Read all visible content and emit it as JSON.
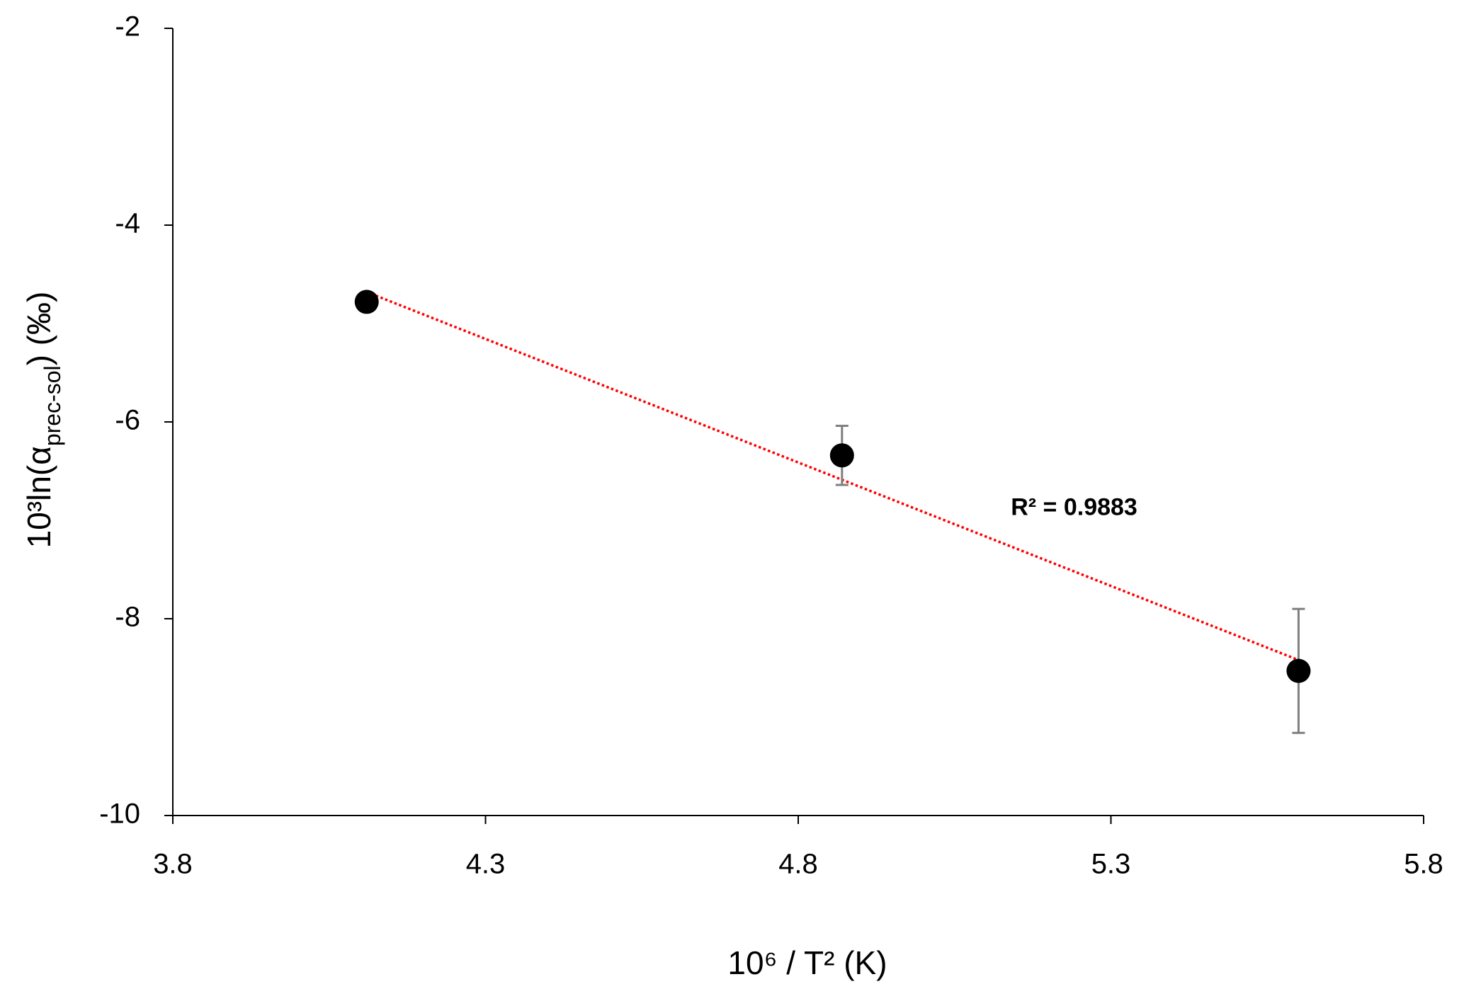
{
  "chart_data": {
    "type": "scatter",
    "xlabel": "10⁶ / T² (K)",
    "ylabel": {
      "main": "10³ln(α",
      "sub": "prec-sol",
      "end": ") (‰)"
    },
    "x": [
      4.11,
      4.87,
      5.6
    ],
    "series": [
      {
        "color": "#000000",
        "values": [
          -4.78,
          -6.34,
          -8.53
        ],
        "errors": [
          null,
          0.3,
          0.63
        ],
        "error_color": "#7f7f7f"
      }
    ],
    "trendline": {
      "x": [
        4.11,
        5.6
      ],
      "y": [
        -4.68,
        -8.42
      ],
      "color": "#ff0000"
    },
    "annotation": {
      "text": "R² = 0.9883",
      "x": 5.14,
      "y": -6.88
    },
    "xlim": [
      3.8,
      5.8
    ],
    "xticks": [
      3.8,
      4.3,
      4.8,
      5.3,
      5.8
    ],
    "ylim": [
      -10,
      -2
    ],
    "yticks": [
      -10,
      -8,
      -6,
      -4,
      -2
    ]
  }
}
